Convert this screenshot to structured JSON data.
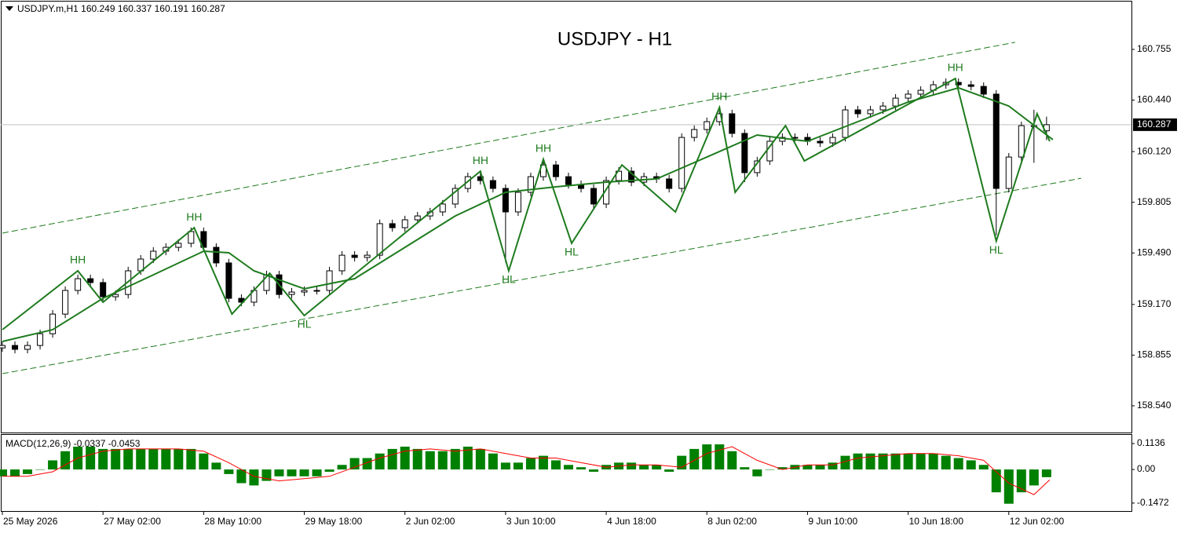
{
  "chart_data": [
    {
      "type": "candlestick",
      "title": "USDJPY - H1",
      "header": "USDJPY.m,H1",
      "x": [
        0,
        4,
        8,
        12,
        16,
        20,
        24,
        28,
        32,
        36,
        40,
        44,
        48,
        52,
        56,
        60,
        64,
        68,
        72,
        76,
        80,
        84,
        88,
        92,
        96,
        100,
        104,
        108,
        112,
        116,
        120,
        124,
        128,
        132,
        136,
        140,
        144,
        148,
        152,
        156,
        160,
        164,
        168,
        172,
        176,
        180,
        184,
        188,
        192,
        196,
        200,
        204,
        208,
        212,
        216,
        220,
        224,
        228,
        232,
        236,
        240,
        244,
        248,
        252,
        256,
        260,
        264,
        268,
        272,
        276,
        280,
        284,
        288,
        292,
        296,
        300,
        304,
        308,
        312,
        316,
        320,
        324,
        328,
        332
      ],
      "open": [
        158.9,
        158.915,
        158.891,
        158.915,
        158.988,
        159.11,
        159.257,
        159.33,
        159.306,
        159.218,
        159.232,
        159.379,
        159.452,
        159.501,
        159.525,
        159.55,
        159.623,
        159.525,
        159.428,
        159.208,
        159.184,
        159.257,
        159.354,
        159.232,
        159.247,
        159.257,
        159.257,
        159.379,
        159.476,
        159.462,
        159.476,
        159.672,
        159.647,
        159.696,
        159.72,
        159.745,
        159.794,
        159.891,
        159.964,
        159.94,
        159.891,
        159.745,
        159.867,
        159.964,
        160.037,
        159.964,
        159.915,
        159.891,
        159.794,
        159.94,
        159.998,
        159.93,
        159.964,
        159.95,
        159.891,
        160.208,
        160.257,
        160.306,
        160.355,
        160.233,
        159.989,
        160.062,
        160.184,
        160.208,
        160.208,
        160.184,
        160.174,
        160.208,
        160.379,
        160.355,
        160.379,
        160.403,
        160.452,
        160.477,
        160.501,
        160.535,
        160.55,
        160.535,
        160.525,
        160.477,
        159.891,
        160.086,
        160.281,
        160.249
      ],
      "high": [
        158.94,
        158.94,
        158.94,
        159.013,
        159.135,
        159.282,
        159.355,
        159.355,
        159.331,
        159.257,
        159.404,
        159.477,
        159.526,
        159.55,
        159.575,
        159.648,
        159.648,
        159.55,
        159.453,
        159.233,
        159.282,
        159.379,
        159.379,
        159.272,
        159.282,
        159.282,
        159.404,
        159.501,
        159.501,
        159.501,
        159.697,
        159.697,
        159.721,
        159.745,
        159.77,
        159.819,
        159.916,
        159.989,
        159.989,
        159.965,
        159.916,
        159.892,
        159.989,
        160.062,
        160.062,
        159.989,
        159.94,
        159.916,
        159.965,
        160.023,
        160.023,
        159.989,
        159.989,
        159.975,
        160.233,
        160.282,
        160.331,
        160.38,
        160.38,
        160.258,
        160.087,
        160.209,
        160.233,
        160.233,
        160.233,
        160.209,
        160.233,
        160.404,
        160.404,
        160.404,
        160.428,
        160.477,
        160.502,
        160.526,
        160.56,
        160.575,
        160.575,
        160.56,
        160.55,
        160.502,
        160.111,
        160.306,
        160.38,
        160.337
      ],
      "low": [
        158.875,
        158.866,
        158.866,
        158.89,
        158.963,
        159.085,
        159.232,
        159.281,
        159.193,
        159.193,
        159.207,
        159.354,
        159.427,
        159.476,
        159.5,
        159.525,
        159.5,
        159.403,
        159.183,
        159.159,
        159.159,
        159.232,
        159.207,
        159.207,
        159.222,
        159.232,
        159.232,
        159.354,
        159.437,
        159.437,
        159.451,
        159.622,
        159.622,
        159.671,
        159.695,
        159.72,
        159.769,
        159.866,
        159.915,
        159.866,
        159.43,
        159.72,
        159.842,
        159.939,
        159.939,
        159.89,
        159.866,
        159.769,
        159.769,
        159.915,
        159.905,
        159.905,
        159.925,
        159.866,
        159.866,
        160.183,
        160.232,
        160.281,
        160.208,
        159.93,
        159.964,
        160.037,
        160.159,
        160.183,
        160.159,
        160.149,
        160.149,
        160.183,
        160.33,
        160.33,
        160.354,
        160.378,
        160.427,
        160.452,
        160.476,
        160.51,
        160.51,
        160.5,
        160.452,
        159.6,
        159.866,
        160.061,
        160.05,
        160.191
      ],
      "close": [
        158.915,
        158.891,
        158.915,
        158.988,
        159.11,
        159.257,
        159.33,
        159.306,
        159.218,
        159.232,
        159.379,
        159.452,
        159.501,
        159.525,
        159.55,
        159.623,
        159.525,
        159.428,
        159.208,
        159.184,
        159.257,
        159.354,
        159.232,
        159.247,
        159.257,
        159.257,
        159.379,
        159.476,
        159.462,
        159.476,
        159.672,
        159.647,
        159.696,
        159.72,
        159.745,
        159.794,
        159.891,
        159.964,
        159.94,
        159.891,
        159.745,
        159.867,
        159.964,
        160.037,
        159.964,
        159.915,
        159.891,
        159.794,
        159.94,
        159.998,
        159.93,
        159.964,
        159.95,
        159.891,
        160.208,
        160.257,
        160.306,
        160.355,
        160.233,
        159.989,
        160.062,
        160.184,
        160.208,
        160.208,
        160.184,
        160.174,
        160.208,
        160.379,
        160.355,
        160.379,
        160.403,
        160.452,
        160.477,
        160.501,
        160.535,
        160.55,
        160.535,
        160.525,
        160.477,
        159.891,
        160.086,
        160.281,
        160.281,
        160.287
      ],
      "ma": {
        "color": "#1e7b1e",
        "x": [
          0,
          16,
          32,
          48,
          64,
          72,
          80,
          96,
          112,
          128,
          144,
          160,
          176,
          192,
          208,
          224,
          240,
          256,
          272,
          288,
          304,
          320,
          334
        ],
        "values": [
          158.94,
          159.013,
          159.208,
          159.354,
          159.501,
          159.491,
          159.379,
          159.267,
          159.33,
          159.525,
          159.72,
          159.867,
          159.901,
          159.93,
          159.95,
          160.086,
          160.223,
          160.184,
          160.306,
          160.428,
          160.516,
          160.403,
          160.194
        ]
      },
      "zigzag": {
        "color": "#1e7b1e",
        "x": [
          0,
          24,
          32,
          61,
          73,
          85,
          96,
          152,
          161,
          172,
          181,
          197,
          214,
          228,
          233,
          249,
          255,
          303,
          316,
          329,
          333
        ],
        "values": [
          159.013,
          159.379,
          159.184,
          159.647,
          159.11,
          159.364,
          159.101,
          159.998,
          159.379,
          160.072,
          159.55,
          160.037,
          159.745,
          160.394,
          159.867,
          160.281,
          160.062,
          160.574,
          159.564,
          160.355,
          160.184
        ],
        "labels": [
          null,
          "HH",
          null,
          "HH",
          null,
          null,
          "HL",
          "HH",
          "HL",
          "HH",
          "HL",
          null,
          null,
          "HH",
          null,
          null,
          null,
          "HH",
          "HL",
          null,
          null
        ]
      },
      "channel_upper": {
        "color": "#1e7b1e",
        "x": [
          0,
          322
        ],
        "values": [
          159.613,
          160.799
        ]
      },
      "channel_lower": {
        "color": "#1e7b1e",
        "x": [
          0,
          343
        ],
        "values": [
          158.74,
          159.954
        ]
      },
      "xlim": [
        0,
        359
      ],
      "ylim": [
        158.374,
        161.062
      ],
      "yticks": [
        160.755,
        {
          "value": 160.44,
          "label": "160.440"
        },
        {
          "value": 160.12,
          "label": "160.120"
        },
        159.805,
        {
          "value": 159.49,
          "label": "159.490"
        },
        {
          "value": 159.17,
          "label": "159.170"
        },
        158.855,
        {
          "value": 158.54,
          "label": "158.540"
        }
      ],
      "xticks": [
        {
          "value": 0,
          "label": "25 May 2026"
        },
        {
          "value": 32,
          "label": "27 May 02:00"
        },
        {
          "value": 64,
          "label": "28 May 10:00"
        },
        {
          "value": 96,
          "label": "29 May 18:00"
        },
        {
          "value": 128,
          "label": "2 Jun 02:00"
        },
        {
          "value": 160,
          "label": "3 Jun 10:00"
        },
        {
          "value": 192,
          "label": "4 Jun 18:00"
        },
        {
          "value": 224,
          "label": "8 Jun 02:00"
        },
        {
          "value": 256,
          "label": "9 Jun 10:00"
        },
        {
          "value": 288,
          "label": "10 Jun 18:00"
        },
        {
          "value": 320,
          "label": "12 Jun 02:00"
        }
      ]
    },
    {
      "type": "macd",
      "label": "MACD(12,26,9)",
      "x": [
        0,
        4,
        8,
        12,
        16,
        20,
        24,
        28,
        32,
        36,
        40,
        44,
        48,
        52,
        56,
        60,
        64,
        68,
        72,
        76,
        80,
        84,
        88,
        92,
        96,
        100,
        104,
        108,
        112,
        116,
        120,
        124,
        128,
        132,
        136,
        140,
        144,
        148,
        152,
        156,
        160,
        164,
        168,
        172,
        176,
        180,
        184,
        188,
        192,
        196,
        200,
        204,
        208,
        212,
        216,
        220,
        224,
        228,
        232,
        236,
        240,
        244,
        248,
        252,
        256,
        260,
        264,
        268,
        272,
        276,
        280,
        284,
        288,
        292,
        296,
        300,
        304,
        308,
        312,
        316,
        320,
        324,
        328,
        332
      ],
      "values": [
        -0.03,
        -0.03,
        -0.02,
        0,
        0.04,
        0.08,
        0.1,
        0.1,
        0.09,
        0.09,
        0.09,
        0.09,
        0.09,
        0.09,
        0.09,
        0.09,
        0.07,
        0.03,
        -0.02,
        -0.06,
        -0.07,
        -0.05,
        -0.03,
        -0.03,
        -0.03,
        -0.03,
        -0.01,
        0.02,
        0.05,
        0.05,
        0.07,
        0.09,
        0.1,
        0.09,
        0.08,
        0.08,
        0.09,
        0.1,
        0.09,
        0.07,
        0.03,
        0.03,
        0.05,
        0.06,
        0.04,
        0.02,
        0.01,
        -0.01,
        0.02,
        0.03,
        0.03,
        0.02,
        0.02,
        -0.01,
        0.06,
        0.09,
        0.11,
        0.11,
        0.08,
        0.01,
        -0.03,
        0,
        0.01,
        0.02,
        0.02,
        0.02,
        0.03,
        0.06,
        0.07,
        0.07,
        0.07,
        0.07,
        0.07,
        0.07,
        0.07,
        0.06,
        0.05,
        0.04,
        0.02,
        -0.1,
        -0.15,
        -0.1,
        -0.07,
        -0.0337
      ],
      "color": "#008000",
      "signal": {
        "color": "#ff0000",
        "x": [
          0,
          8,
          16,
          24,
          32,
          40,
          48,
          56,
          64,
          72,
          80,
          88,
          96,
          104,
          112,
          120,
          128,
          136,
          144,
          152,
          160,
          168,
          176,
          184,
          192,
          200,
          208,
          216,
          224,
          232,
          240,
          248,
          256,
          264,
          272,
          280,
          288,
          296,
          304,
          312,
          320,
          328,
          333
        ],
        "values": [
          -0.03,
          -0.03,
          -0.01,
          0.05,
          0.08,
          0.09,
          0.09,
          0.09,
          0.08,
          0.03,
          -0.03,
          -0.05,
          -0.04,
          -0.03,
          0.01,
          0.05,
          0.08,
          0.09,
          0.08,
          0.09,
          0.07,
          0.05,
          0.05,
          0.03,
          0.01,
          0.02,
          0.02,
          0.01,
          0.07,
          0.1,
          0.04,
          0,
          0.02,
          0.02,
          0.05,
          0.06,
          0.07,
          0.07,
          0.06,
          0.04,
          -0.06,
          -0.11,
          -0.0453
        ]
      },
      "xlim": [
        0,
        359
      ],
      "ylim": [
        -0.182,
        0.155
      ],
      "yticks": [
        0.1136,
        {
          "value": 0,
          "label": "0.00"
        },
        -0.1472
      ]
    }
  ]
}
